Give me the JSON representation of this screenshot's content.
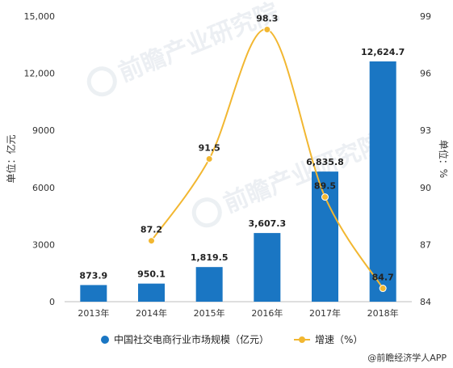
{
  "chart_data": {
    "type": "bar",
    "categories": [
      "2013年",
      "2014年",
      "2015年",
      "2016年",
      "2017年",
      "2018年"
    ],
    "series": [
      {
        "name": "中国社交电商行业市场规模（亿元）",
        "chart": "bar",
        "axis": "left",
        "values": [
          873.9,
          950.1,
          1819.5,
          3607.3,
          6835.8,
          12624.7
        ],
        "value_labels": [
          "873.9",
          "950.1",
          "1,819.5",
          "3,607.3",
          "6,835.8",
          "12,624.7"
        ],
        "color": "#1a76c3"
      },
      {
        "name": "增速（%）",
        "chart": "line",
        "axis": "right",
        "values": [
          null,
          87.2,
          91.5,
          98.3,
          89.5,
          84.7
        ],
        "value_labels": [
          "",
          "87.2",
          "91.5",
          "98.3",
          "89.5",
          "84.7"
        ],
        "color": "#f2b731"
      }
    ],
    "ylabel": "单位：亿元",
    "ylabel_right": "单位：%",
    "ylim": [
      0,
      15000
    ],
    "yticks": [
      0,
      3000,
      6000,
      9000,
      12000,
      15000
    ],
    "ytick_labels": [
      "0",
      "3000",
      "6000",
      "9000",
      "12,000",
      "15,000"
    ],
    "ylim_right": [
      84,
      99
    ],
    "yticks_right": [
      84,
      87,
      90,
      93,
      96,
      99
    ],
    "ytick_labels_right": [
      "84",
      "87",
      "90",
      "93",
      "96",
      "99"
    ],
    "grid": false,
    "legend": "bottom"
  },
  "credit": "@前瞻经济学人APP",
  "watermark": "前瞻产业研究院"
}
